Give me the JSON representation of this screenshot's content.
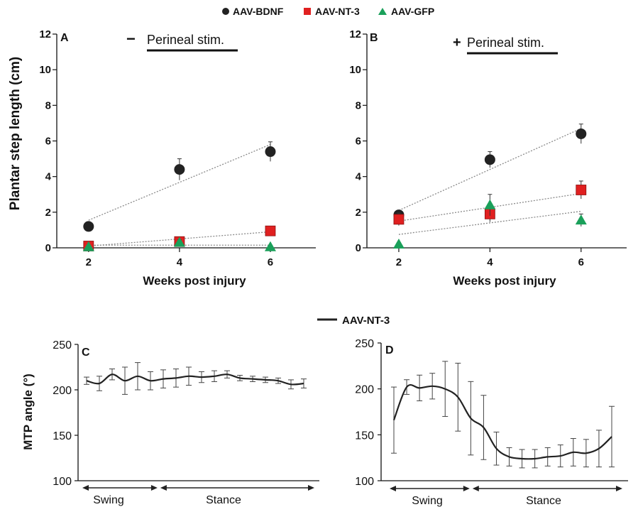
{
  "legend_top": [
    {
      "label": "AAV-BDNF",
      "color": "#222222",
      "marker": "circle"
    },
    {
      "label": "AAV-NT-3",
      "color": "#e02020",
      "marker": "square"
    },
    {
      "label": "AAV-GFP",
      "color": "#1aa05a",
      "marker": "triangle"
    }
  ],
  "legend_bottom": {
    "label": "AAV-NT-3",
    "color": "#222222"
  },
  "chart_data": [
    {
      "panel": "A",
      "type": "scatter",
      "stim_sign": "−",
      "stim_label": "Perineal stim.",
      "ylabel": "Plantar step length (cm)",
      "xlabel": "Weeks post injury",
      "x_ticks": [
        2,
        4,
        6
      ],
      "y_ticks": [
        0,
        2,
        4,
        6,
        8,
        10,
        12
      ],
      "xlim": [
        1.3,
        7.0
      ],
      "ylim": [
        0,
        12
      ],
      "series": [
        {
          "name": "AAV-BDNF",
          "marker": "circle",
          "color": "#222222",
          "x": [
            2,
            4,
            6
          ],
          "y": [
            1.2,
            4.4,
            5.4
          ],
          "err": [
            0.15,
            0.6,
            0.55
          ],
          "trend": [
            1.55,
            5.8
          ]
        },
        {
          "name": "AAV-NT-3",
          "marker": "square",
          "color": "#e02020",
          "x": [
            2,
            4,
            6
          ],
          "y": [
            0.1,
            0.35,
            0.95
          ],
          "err": [
            0.1,
            0.15,
            0.2
          ],
          "trend": [
            0.1,
            0.9
          ]
        },
        {
          "name": "AAV-GFP",
          "marker": "triangle",
          "color": "#1aa05a",
          "x": [
            2,
            4,
            6
          ],
          "y": [
            0.05,
            0.3,
            0.05
          ],
          "err": [
            0.05,
            0.15,
            0.05
          ],
          "trend": [
            0.15,
            0.15
          ]
        }
      ]
    },
    {
      "panel": "B",
      "type": "scatter",
      "stim_sign": "+",
      "stim_label": "Perineal stim.",
      "ylabel": "",
      "xlabel": "Weeks post injury",
      "x_ticks": [
        2,
        4,
        6
      ],
      "y_ticks": [
        0,
        2,
        4,
        6,
        8,
        10,
        12
      ],
      "xlim": [
        1.3,
        7.0
      ],
      "ylim": [
        0,
        12
      ],
      "series": [
        {
          "name": "AAV-BDNF",
          "marker": "circle",
          "color": "#222222",
          "x": [
            2,
            4,
            6
          ],
          "y": [
            1.85,
            4.95,
            6.4
          ],
          "err": [
            0.2,
            0.45,
            0.55
          ],
          "trend": [
            2.1,
            6.7
          ]
        },
        {
          "name": "AAV-NT-3",
          "marker": "square",
          "color": "#e02020",
          "x": [
            2,
            4,
            6
          ],
          "y": [
            1.6,
            1.9,
            3.25
          ],
          "err": [
            0.35,
            0.45,
            0.5
          ],
          "trend": [
            1.5,
            3.05
          ]
        },
        {
          "name": "AAV-GFP",
          "marker": "triangle",
          "color": "#1aa05a",
          "x": [
            2,
            4,
            6
          ],
          "y": [
            0.2,
            2.4,
            1.55
          ],
          "err": [
            0.1,
            0.6,
            0.35
          ],
          "trend": [
            0.75,
            2.05
          ]
        }
      ]
    },
    {
      "panel": "C",
      "type": "line",
      "ylabel": "MTP angle (°)",
      "y_ticks": [
        100,
        150,
        200,
        250
      ],
      "ylim": [
        100,
        250
      ],
      "phase_labels": [
        "Swing",
        "Stance"
      ],
      "swing_fraction": 0.33,
      "series": [
        {
          "name": "AAV-NT-3",
          "color": "#222222",
          "y": [
            210,
            207,
            217,
            210,
            215,
            210,
            212,
            213,
            215,
            214,
            215,
            217,
            213,
            212,
            211,
            210,
            206,
            207
          ],
          "err": [
            4,
            8,
            6,
            15,
            15,
            10,
            10,
            10,
            10,
            6,
            6,
            4,
            3,
            3,
            3,
            3,
            5,
            5
          ]
        }
      ]
    },
    {
      "panel": "D",
      "type": "line",
      "ylabel": "",
      "y_ticks": [
        100,
        150,
        200,
        250
      ],
      "ylim": [
        100,
        250
      ],
      "phase_labels": [
        "Swing",
        "Stance"
      ],
      "swing_fraction": 0.35,
      "series": [
        {
          "name": "AAV-NT-3",
          "color": "#222222",
          "y": [
            166,
            202,
            201,
            203,
            200,
            191,
            168,
            158,
            135,
            126,
            124,
            124,
            126,
            127,
            131,
            130,
            135,
            148
          ],
          "err": [
            36,
            8,
            14,
            14,
            30,
            37,
            40,
            35,
            18,
            10,
            10,
            10,
            10,
            12,
            15,
            15,
            20,
            33
          ]
        }
      ]
    }
  ]
}
